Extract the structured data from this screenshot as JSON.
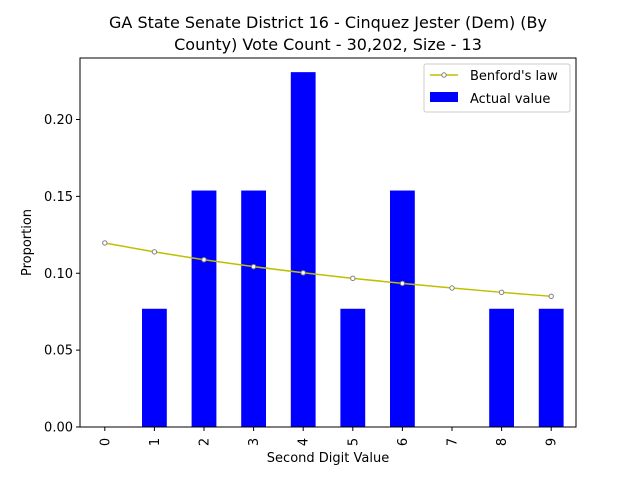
{
  "chart_data": {
    "type": "bar",
    "title_line1": "GA State Senate District 16 - Cinquez Jester (Dem) (By",
    "title_line2": "County) Vote Count - 30,202, Size - 13",
    "xlabel": "Second Digit Value",
    "ylabel": "Proportion",
    "categories": [
      "0",
      "1",
      "2",
      "3",
      "4",
      "5",
      "6",
      "7",
      "8",
      "9"
    ],
    "ylim": [
      0,
      0.24
    ],
    "yticks": [
      "0.00",
      "0.05",
      "0.10",
      "0.15",
      "0.20"
    ],
    "grid": false,
    "legend_position": "top-right",
    "series": [
      {
        "name": "Actual value",
        "kind": "bar",
        "color": "#0000ff",
        "values": [
          0.0,
          0.0769,
          0.1538,
          0.1538,
          0.2308,
          0.0769,
          0.1538,
          0.0,
          0.0769,
          0.0769
        ]
      },
      {
        "name": "Benford's law",
        "kind": "line",
        "color": "#bfbf00",
        "marker_color": "#808080",
        "values": [
          0.1197,
          0.1139,
          0.1088,
          0.1043,
          0.1003,
          0.0967,
          0.0934,
          0.0904,
          0.0876,
          0.085
        ]
      }
    ]
  }
}
